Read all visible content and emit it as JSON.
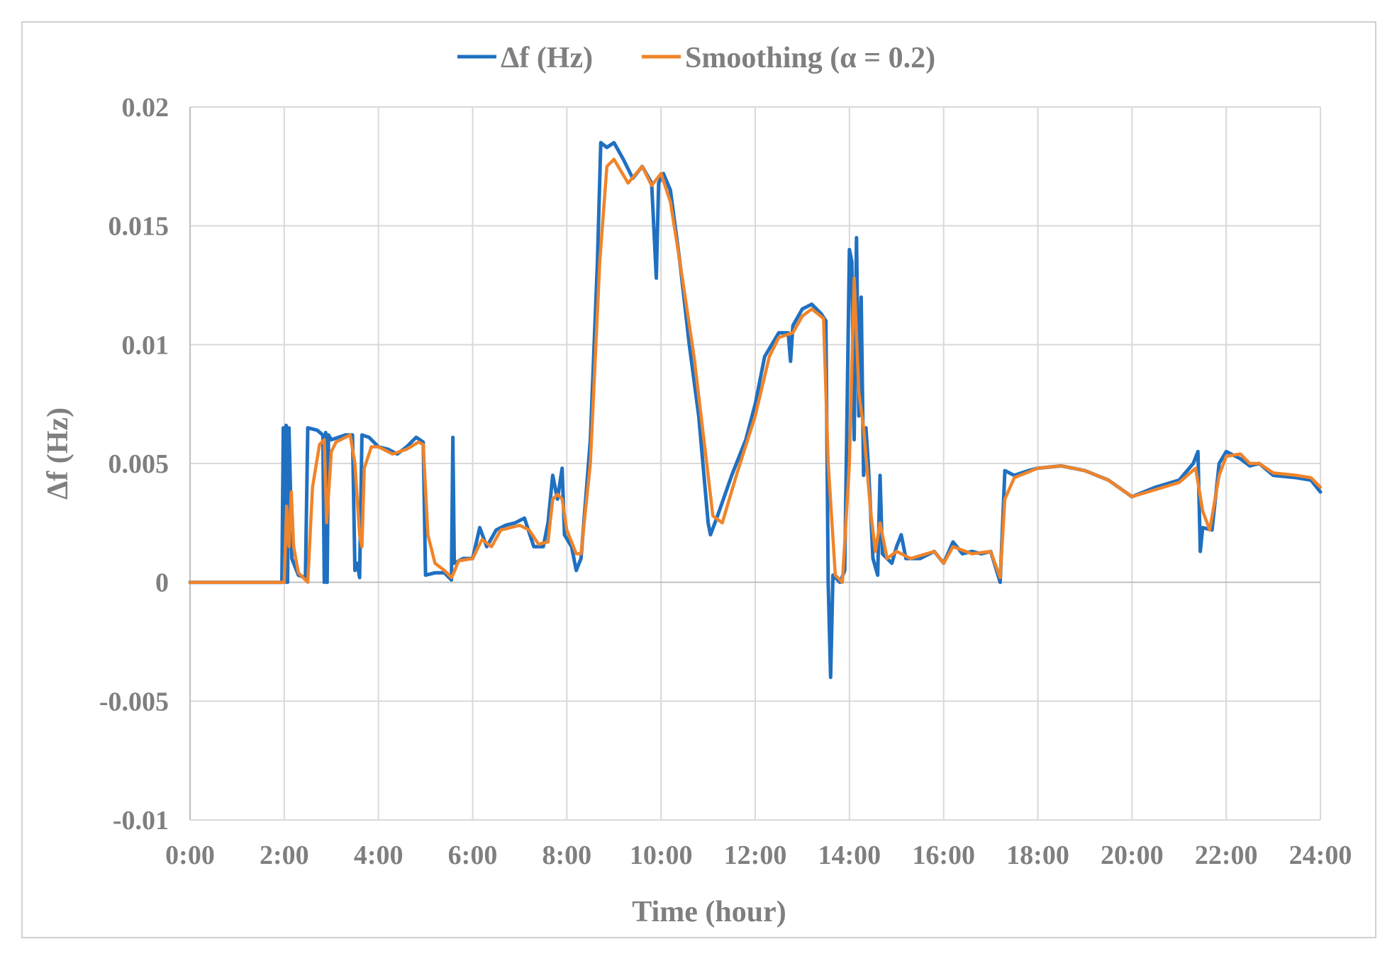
{
  "chart_data": {
    "type": "line",
    "xlabel": "Time (hour)",
    "ylabel": "Δf (Hz)",
    "ylim": [
      -0.01,
      0.02
    ],
    "xlim": [
      0,
      24
    ],
    "grid": true,
    "legend_position": "top-center",
    "x_tick_labels": [
      "0:00",
      "2:00",
      "4:00",
      "6:00",
      "8:00",
      "10:00",
      "12:00",
      "14:00",
      "16:00",
      "18:00",
      "20:00",
      "22:00",
      "24:00"
    ],
    "y_tick_labels": [
      "0.02",
      "0.015",
      "0.01",
      "0.005",
      "0",
      "-0.005",
      "-0.01"
    ],
    "y_tick_values": [
      0.02,
      0.015,
      0.01,
      0.005,
      0,
      -0.005,
      -0.01
    ],
    "series": [
      {
        "name": "Δf (Hz)",
        "color": "#1f70c1",
        "points": [
          [
            0,
            0
          ],
          [
            1.95,
            0
          ],
          [
            1.98,
            0.0065
          ],
          [
            2.01,
            0
          ],
          [
            2.04,
            0.0066
          ],
          [
            2.07,
            0
          ],
          [
            2.1,
            0.0065
          ],
          [
            2.13,
            0.004
          ],
          [
            2.16,
            0.001
          ],
          [
            2.3,
            0.0003
          ],
          [
            2.45,
            0.0002
          ],
          [
            2.5,
            0.0065
          ],
          [
            2.7,
            0.0064
          ],
          [
            2.82,
            0.0062
          ],
          [
            2.85,
            0
          ],
          [
            2.88,
            0.0063
          ],
          [
            2.91,
            0
          ],
          [
            2.94,
            0.0062
          ],
          [
            3.0,
            0.006
          ],
          [
            3.3,
            0.0062
          ],
          [
            3.45,
            0.0062
          ],
          [
            3.5,
            0.0005
          ],
          [
            3.55,
            0.0008
          ],
          [
            3.6,
            0.0002
          ],
          [
            3.65,
            0.0062
          ],
          [
            3.8,
            0.0061
          ],
          [
            4.0,
            0.0057
          ],
          [
            4.2,
            0.0056
          ],
          [
            4.4,
            0.0054
          ],
          [
            4.6,
            0.0057
          ],
          [
            4.8,
            0.0061
          ],
          [
            4.95,
            0.0059
          ],
          [
            5.0,
            0.0003
          ],
          [
            5.2,
            0.0004
          ],
          [
            5.4,
            0.0004
          ],
          [
            5.5,
            0.0002
          ],
          [
            5.55,
            0.0001
          ],
          [
            5.58,
            0.0061
          ],
          [
            5.61,
            0.0008
          ],
          [
            5.8,
            0.001
          ],
          [
            6.0,
            0.001
          ],
          [
            6.15,
            0.0023
          ],
          [
            6.3,
            0.0015
          ],
          [
            6.5,
            0.0022
          ],
          [
            6.7,
            0.0024
          ],
          [
            6.9,
            0.0025
          ],
          [
            7.1,
            0.0027
          ],
          [
            7.3,
            0.0015
          ],
          [
            7.5,
            0.0015
          ],
          [
            7.6,
            0.0025
          ],
          [
            7.7,
            0.0045
          ],
          [
            7.8,
            0.0035
          ],
          [
            7.9,
            0.0048
          ],
          [
            7.95,
            0.002
          ],
          [
            8.1,
            0.0015
          ],
          [
            8.2,
            0.0005
          ],
          [
            8.3,
            0.001
          ],
          [
            8.5,
            0.006
          ],
          [
            8.65,
            0.0135
          ],
          [
            8.72,
            0.0185
          ],
          [
            8.85,
            0.0183
          ],
          [
            9.0,
            0.0185
          ],
          [
            9.2,
            0.0178
          ],
          [
            9.4,
            0.017
          ],
          [
            9.6,
            0.0175
          ],
          [
            9.8,
            0.0168
          ],
          [
            9.85,
            0.0148
          ],
          [
            9.9,
            0.0128
          ],
          [
            9.95,
            0.0168
          ],
          [
            10.05,
            0.0172
          ],
          [
            10.2,
            0.0165
          ],
          [
            10.4,
            0.0135
          ],
          [
            10.6,
            0.01
          ],
          [
            10.8,
            0.007
          ],
          [
            11.0,
            0.0025
          ],
          [
            11.05,
            0.002
          ],
          [
            11.2,
            0.0028
          ],
          [
            11.5,
            0.0045
          ],
          [
            11.8,
            0.006
          ],
          [
            12.0,
            0.0075
          ],
          [
            12.2,
            0.0095
          ],
          [
            12.5,
            0.0105
          ],
          [
            12.7,
            0.0105
          ],
          [
            12.75,
            0.0093
          ],
          [
            12.8,
            0.0108
          ],
          [
            13.0,
            0.0115
          ],
          [
            13.2,
            0.0117
          ],
          [
            13.4,
            0.0113
          ],
          [
            13.5,
            0.011
          ],
          [
            13.55,
            0.0
          ],
          [
            13.6,
            -0.004
          ],
          [
            13.65,
            0.0003
          ],
          [
            13.8,
            0.0
          ],
          [
            13.9,
            0.0005
          ],
          [
            14.0,
            0.014
          ],
          [
            14.05,
            0.0135
          ],
          [
            14.1,
            0.006
          ],
          [
            14.15,
            0.0145
          ],
          [
            14.2,
            0.007
          ],
          [
            14.25,
            0.012
          ],
          [
            14.3,
            0.0045
          ],
          [
            14.35,
            0.0065
          ],
          [
            14.4,
            0.005
          ],
          [
            14.5,
            0.001
          ],
          [
            14.6,
            0.0003
          ],
          [
            14.65,
            0.0045
          ],
          [
            14.7,
            0.0012
          ],
          [
            14.9,
            0.0008
          ],
          [
            15.0,
            0.0015
          ],
          [
            15.1,
            0.002
          ],
          [
            15.2,
            0.001
          ],
          [
            15.5,
            0.001
          ],
          [
            15.8,
            0.0013
          ],
          [
            16.0,
            0.0008
          ],
          [
            16.2,
            0.0017
          ],
          [
            16.4,
            0.0012
          ],
          [
            16.6,
            0.0013
          ],
          [
            16.8,
            0.0012
          ],
          [
            17.0,
            0.0013
          ],
          [
            17.2,
            0.0
          ],
          [
            17.3,
            0.0047
          ],
          [
            17.5,
            0.0045
          ],
          [
            17.8,
            0.0047
          ],
          [
            18.0,
            0.0048
          ],
          [
            18.5,
            0.0049
          ],
          [
            19.0,
            0.0047
          ],
          [
            19.5,
            0.0043
          ],
          [
            20.0,
            0.0036
          ],
          [
            20.5,
            0.004
          ],
          [
            21.0,
            0.0043
          ],
          [
            21.3,
            0.005
          ],
          [
            21.4,
            0.0055
          ],
          [
            21.45,
            0.0013
          ],
          [
            21.5,
            0.0023
          ],
          [
            21.7,
            0.0022
          ],
          [
            21.85,
            0.005
          ],
          [
            22.0,
            0.0055
          ],
          [
            22.3,
            0.0052
          ],
          [
            22.5,
            0.0049
          ],
          [
            22.7,
            0.005
          ],
          [
            23.0,
            0.0045
          ],
          [
            23.5,
            0.0044
          ],
          [
            23.8,
            0.0043
          ],
          [
            24.0,
            0.0038
          ]
        ]
      },
      {
        "name": "Smoothing (α = 0.2)",
        "color": "#f0842a",
        "points": [
          [
            0,
            0
          ],
          [
            2.0,
            0
          ],
          [
            2.05,
            0.0032
          ],
          [
            2.1,
            0.0015
          ],
          [
            2.15,
            0.0038
          ],
          [
            2.2,
            0.0015
          ],
          [
            2.3,
            0.0004
          ],
          [
            2.5,
            0.0
          ],
          [
            2.6,
            0.004
          ],
          [
            2.75,
            0.0058
          ],
          [
            2.85,
            0.006
          ],
          [
            2.9,
            0.0025
          ],
          [
            3.0,
            0.0055
          ],
          [
            3.1,
            0.0059
          ],
          [
            3.4,
            0.0062
          ],
          [
            3.5,
            0.005
          ],
          [
            3.6,
            0.002
          ],
          [
            3.65,
            0.0015
          ],
          [
            3.7,
            0.0048
          ],
          [
            3.85,
            0.0057
          ],
          [
            4.0,
            0.0057
          ],
          [
            4.3,
            0.0054
          ],
          [
            4.6,
            0.0056
          ],
          [
            4.85,
            0.0059
          ],
          [
            4.95,
            0.0058
          ],
          [
            5.05,
            0.002
          ],
          [
            5.2,
            0.0008
          ],
          [
            5.4,
            0.0005
          ],
          [
            5.55,
            0.0002
          ],
          [
            5.6,
            0.0004
          ],
          [
            5.7,
            0.0009
          ],
          [
            6.0,
            0.001
          ],
          [
            6.2,
            0.0018
          ],
          [
            6.4,
            0.0015
          ],
          [
            6.6,
            0.0022
          ],
          [
            7.0,
            0.0024
          ],
          [
            7.2,
            0.0022
          ],
          [
            7.4,
            0.0016
          ],
          [
            7.6,
            0.0017
          ],
          [
            7.7,
            0.0035
          ],
          [
            7.8,
            0.0037
          ],
          [
            7.9,
            0.0035
          ],
          [
            8.0,
            0.0022
          ],
          [
            8.2,
            0.0012
          ],
          [
            8.3,
            0.0012
          ],
          [
            8.5,
            0.005
          ],
          [
            8.7,
            0.0135
          ],
          [
            8.85,
            0.0175
          ],
          [
            9.0,
            0.0178
          ],
          [
            9.3,
            0.0168
          ],
          [
            9.6,
            0.0175
          ],
          [
            9.8,
            0.0167
          ],
          [
            10.0,
            0.0172
          ],
          [
            10.2,
            0.016
          ],
          [
            10.4,
            0.0135
          ],
          [
            10.7,
            0.0095
          ],
          [
            11.0,
            0.0045
          ],
          [
            11.1,
            0.0028
          ],
          [
            11.3,
            0.0025
          ],
          [
            11.6,
            0.0045
          ],
          [
            12.0,
            0.007
          ],
          [
            12.3,
            0.0095
          ],
          [
            12.5,
            0.0103
          ],
          [
            12.8,
            0.0105
          ],
          [
            13.0,
            0.0112
          ],
          [
            13.2,
            0.0115
          ],
          [
            13.45,
            0.0111
          ],
          [
            13.55,
            0.005
          ],
          [
            13.7,
            0.0003
          ],
          [
            13.85,
            0.0
          ],
          [
            14.0,
            0.005
          ],
          [
            14.1,
            0.0128
          ],
          [
            14.2,
            0.008
          ],
          [
            14.3,
            0.0065
          ],
          [
            14.45,
            0.003
          ],
          [
            14.55,
            0.0013
          ],
          [
            14.65,
            0.0025
          ],
          [
            14.8,
            0.001
          ],
          [
            15.0,
            0.0013
          ],
          [
            15.3,
            0.001
          ],
          [
            15.8,
            0.0013
          ],
          [
            16.0,
            0.0008
          ],
          [
            16.2,
            0.0015
          ],
          [
            16.6,
            0.0012
          ],
          [
            17.0,
            0.0013
          ],
          [
            17.2,
            0.0002
          ],
          [
            17.3,
            0.0035
          ],
          [
            17.5,
            0.0044
          ],
          [
            18.0,
            0.0048
          ],
          [
            18.5,
            0.0049
          ],
          [
            19.0,
            0.0047
          ],
          [
            19.5,
            0.0043
          ],
          [
            20.0,
            0.0036
          ],
          [
            20.5,
            0.0039
          ],
          [
            21.0,
            0.0042
          ],
          [
            21.35,
            0.0048
          ],
          [
            21.5,
            0.003
          ],
          [
            21.65,
            0.0022
          ],
          [
            21.85,
            0.0045
          ],
          [
            22.0,
            0.0053
          ],
          [
            22.3,
            0.0054
          ],
          [
            22.5,
            0.005
          ],
          [
            22.7,
            0.005
          ],
          [
            23.0,
            0.0046
          ],
          [
            23.5,
            0.0045
          ],
          [
            23.8,
            0.0044
          ],
          [
            24.0,
            0.004
          ]
        ]
      }
    ]
  }
}
